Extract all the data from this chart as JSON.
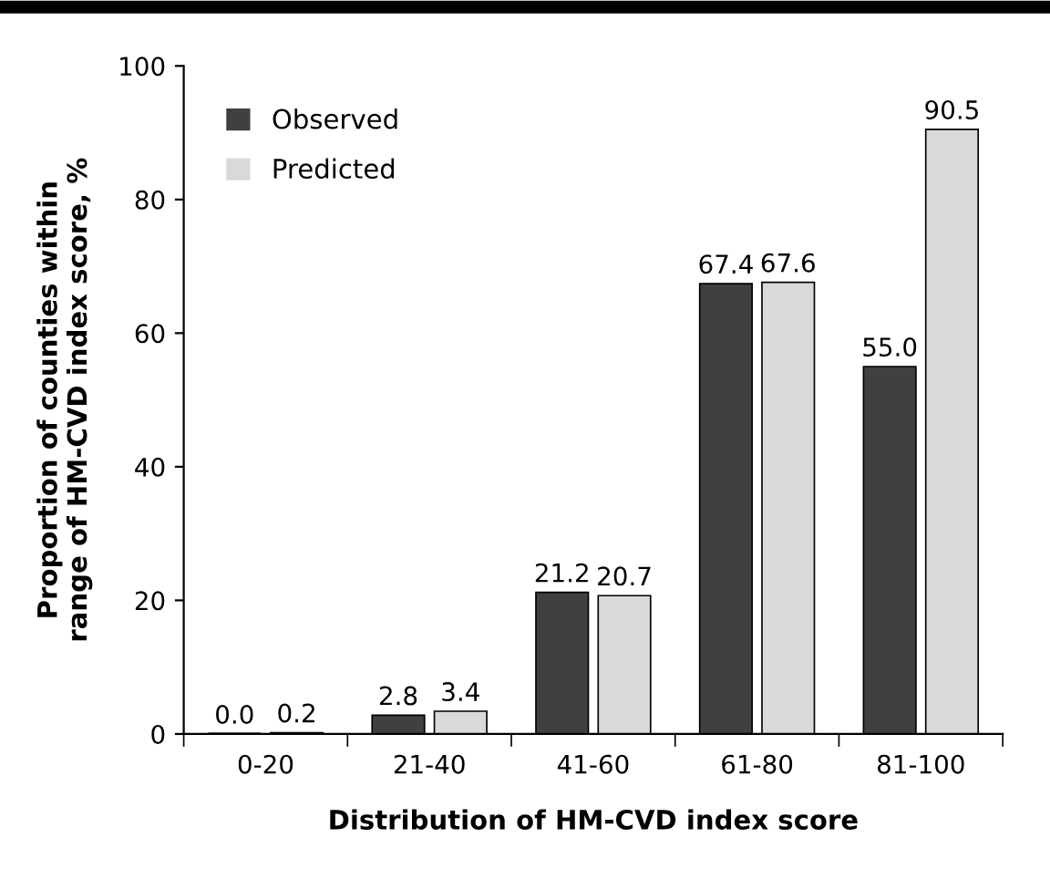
{
  "chart_data": {
    "type": "bar",
    "xlabel": "Distribution of HM-CVD index score",
    "ylabel": "Proportion of counties within\nrange of HM-CVD index score, %",
    "categories": [
      "0-20",
      "21-40",
      "41-60",
      "61-80",
      "81-100"
    ],
    "series": [
      {
        "name": "Observed",
        "color": "#404040",
        "values": [
          0.0,
          2.8,
          21.2,
          67.4,
          55.0
        ],
        "value_labels": [
          "0.0",
          "2.8",
          "21.2",
          "67.4",
          "55.0"
        ]
      },
      {
        "name": "Predicted",
        "color": "#d9d9d9",
        "values": [
          0.2,
          3.4,
          20.7,
          67.6,
          90.5
        ],
        "value_labels": [
          "0.2",
          "3.4",
          "20.7",
          "67.6",
          "90.5"
        ]
      }
    ],
    "ylim": [
      0,
      100
    ],
    "yticks": [
      0,
      20,
      40,
      60,
      80,
      100
    ],
    "legend": "top left",
    "grid": false
  }
}
